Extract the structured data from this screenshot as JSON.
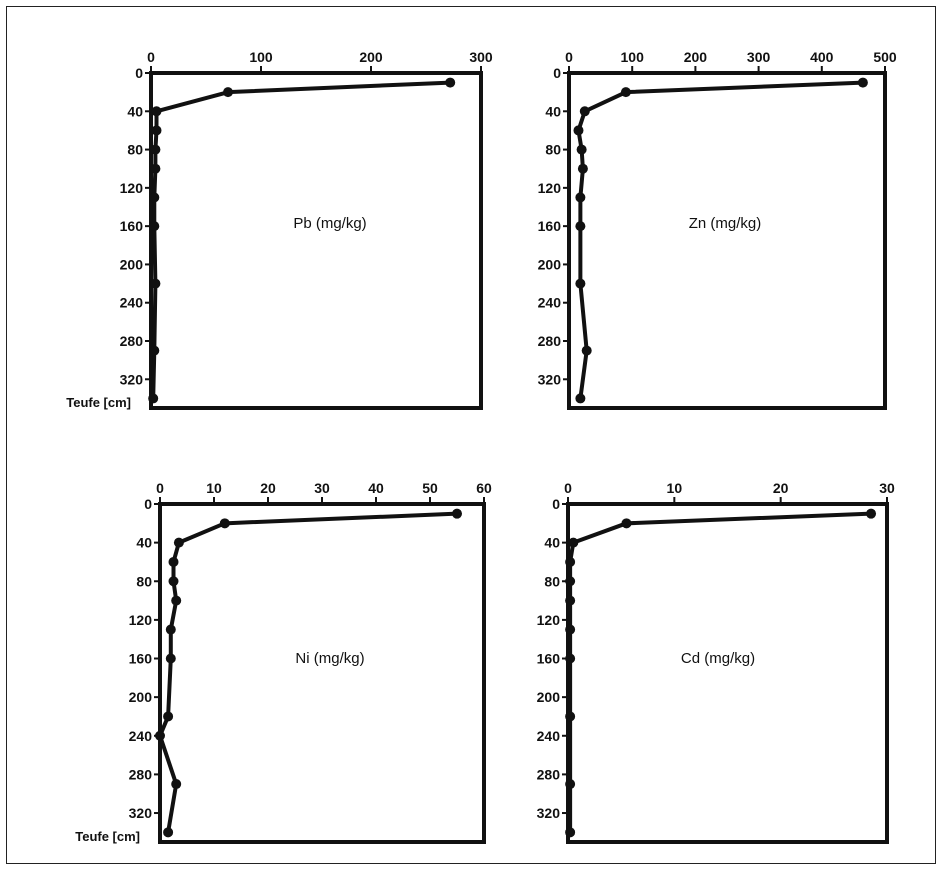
{
  "chart_data": [
    {
      "type": "line",
      "label": "Pb (mg/kg)",
      "xlim": [
        0,
        300
      ],
      "xticks": [
        "0",
        "100",
        "200",
        "300"
      ],
      "ylim": [
        0,
        350
      ],
      "yticks": [
        "0",
        "40",
        "80",
        "120",
        "160",
        "200",
        "240",
        "280",
        "320"
      ],
      "ylabel": "Teufe [cm]",
      "series": [
        {
          "x": [
            272,
            70,
            5,
            5,
            4,
            4,
            3,
            3,
            4,
            3,
            2
          ],
          "y": [
            10,
            20,
            40,
            60,
            80,
            100,
            130,
            160,
            220,
            290,
            340
          ]
        }
      ]
    },
    {
      "type": "line",
      "label": "Zn (mg/kg)",
      "xlim": [
        0,
        500
      ],
      "xticks": [
        "0",
        "100",
        "200",
        "300",
        "400",
        "500"
      ],
      "ylim": [
        0,
        350
      ],
      "yticks": [
        "0",
        "40",
        "80",
        "120",
        "160",
        "200",
        "240",
        "280",
        "320"
      ],
      "ylabel": "",
      "series": [
        {
          "x": [
            465,
            90,
            25,
            15,
            20,
            22,
            18,
            18,
            18,
            28,
            18
          ],
          "y": [
            10,
            20,
            40,
            60,
            80,
            100,
            130,
            160,
            220,
            290,
            340
          ]
        }
      ]
    },
    {
      "type": "line",
      "label": "Ni (mg/kg)",
      "xlim": [
        0,
        60
      ],
      "xticks": [
        "0",
        "10",
        "20",
        "30",
        "40",
        "50",
        "60"
      ],
      "ylim": [
        0,
        350
      ],
      "yticks": [
        "0",
        "40",
        "80",
        "120",
        "160",
        "200",
        "240",
        "280",
        "320"
      ],
      "ylabel": "Teufe [cm]",
      "series": [
        {
          "x": [
            55,
            12,
            3.5,
            2.5,
            2.5,
            3,
            2,
            2,
            1.5,
            0,
            3,
            1.5
          ],
          "y": [
            10,
            20,
            40,
            60,
            80,
            100,
            130,
            160,
            220,
            240,
            290,
            340
          ]
        }
      ]
    },
    {
      "type": "line",
      "label": "Cd (mg/kg)",
      "xlim": [
        0,
        30
      ],
      "xticks": [
        "0",
        "10",
        "20",
        "30"
      ],
      "ylim": [
        0,
        350
      ],
      "yticks": [
        "0",
        "40",
        "80",
        "120",
        "160",
        "200",
        "240",
        "280",
        "320"
      ],
      "ylabel": "",
      "series": [
        {
          "x": [
            28.5,
            5.5,
            0.5,
            0.2,
            0.2,
            0.2,
            0.2,
            0.2,
            0.2,
            0.2,
            0.2
          ],
          "y": [
            10,
            20,
            40,
            60,
            80,
            100,
            130,
            160,
            220,
            290,
            340
          ]
        }
      ]
    }
  ]
}
